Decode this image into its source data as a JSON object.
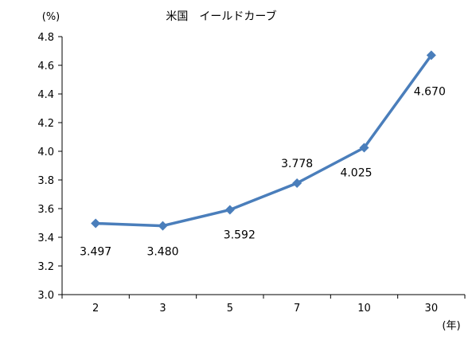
{
  "chart_data": {
    "type": "line",
    "title": "米国　イールドカーブ",
    "ylabel": "(%)",
    "xlabel": "(年)",
    "categories": [
      "2",
      "3",
      "5",
      "7",
      "10",
      "30"
    ],
    "series": [
      {
        "values": [
          3.497,
          3.48,
          3.592,
          3.778,
          4.025,
          4.67
        ],
        "data_labels": [
          "3.497",
          "3.480",
          "3.592",
          "3.778",
          "4.025",
          "4.670"
        ]
      }
    ],
    "ylim": [
      3.0,
      4.8
    ],
    "yticks": [
      3.0,
      3.2,
      3.4,
      3.6,
      3.8,
      4.0,
      4.2,
      4.4,
      4.6,
      4.8
    ],
    "ytick_labels": [
      "3.0",
      "3.2",
      "3.4",
      "3.6",
      "3.8",
      "4.0",
      "4.2",
      "4.4",
      "4.6",
      "4.8"
    ],
    "grid": false,
    "legend": "none",
    "colors": {
      "line": "#4a7ebb",
      "marker": "#4a7ebb",
      "axis": "#000000"
    },
    "marker": "diamond"
  }
}
